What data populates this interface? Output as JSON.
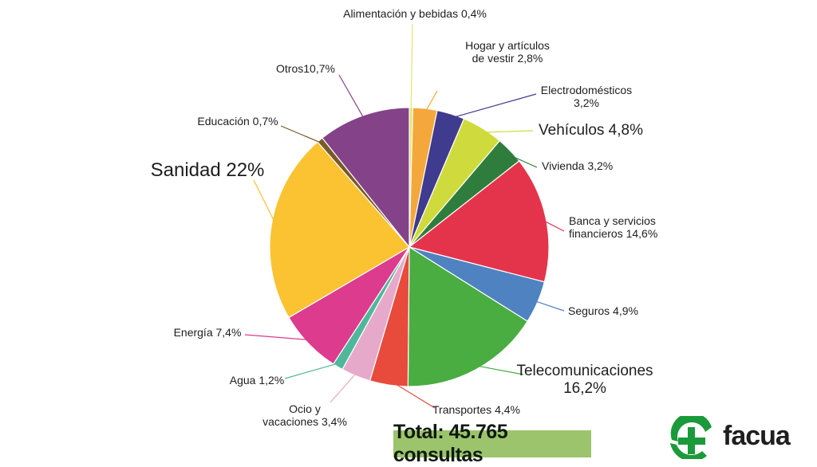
{
  "chart_data": {
    "type": "pie",
    "slices": [
      {
        "label": "Alimentación y bebidas",
        "value": 0.4,
        "value_text": "0,4%",
        "color": "#e0e56a"
      },
      {
        "label": "Hogar y artículos de vestir",
        "value": 2.8,
        "value_text": "2,8%",
        "color": "#f4a83c"
      },
      {
        "label": "Electrodomésticos",
        "value": 3.2,
        "value_text": "3,2%",
        "color": "#3f3b8f"
      },
      {
        "label": "Vehículos",
        "value": 4.8,
        "value_text": "4,8%",
        "color": "#cfdb3c"
      },
      {
        "label": "Vivienda",
        "value": 3.2,
        "value_text": "3,2%",
        "color": "#2e7d3c"
      },
      {
        "label": "Banca y servicios financieros",
        "value": 14.6,
        "value_text": "14,6%",
        "color": "#e4344c"
      },
      {
        "label": "Seguros",
        "value": 4.9,
        "value_text": "4,9%",
        "color": "#4f82c0"
      },
      {
        "label": "Telecomunicaciones",
        "value": 16.2,
        "value_text": "16,2%",
        "color": "#49ad41"
      },
      {
        "label": "Transportes",
        "value": 4.4,
        "value_text": "4,4%",
        "color": "#e84a3c"
      },
      {
        "label": "Ocio y vacaciones",
        "value": 3.4,
        "value_text": "3,4%",
        "color": "#e7a9c9"
      },
      {
        "label": "Agua",
        "value": 1.2,
        "value_text": "1,2%",
        "color": "#4fb89a"
      },
      {
        "label": "Energía",
        "value": 7.4,
        "value_text": "7,4%",
        "color": "#dd3b8e"
      },
      {
        "label": "Sanidad",
        "value": 22,
        "value_text": "22%",
        "color": "#fbc232"
      },
      {
        "label": "Educación",
        "value": 0.7,
        "value_text": "0,7%",
        "color": "#7a5a2a"
      },
      {
        "label": "Otros",
        "value": 10.7,
        "value_text": "10,7%",
        "color": "#844289"
      }
    ],
    "total_text": "Total: 45.765 consultas"
  },
  "logo": {
    "text": "facua",
    "color": "#1a9a3a"
  }
}
